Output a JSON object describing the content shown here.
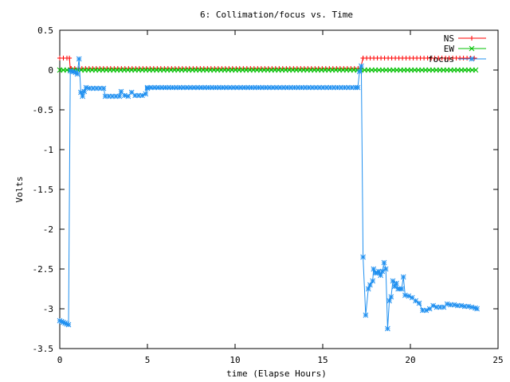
{
  "chart_data": {
    "type": "line",
    "title": "6: Collimation/focus vs. Time",
    "xlabel": "time (Elapse Hours)",
    "ylabel": "Volts",
    "xlim": [
      0,
      25
    ],
    "ylim": [
      -3.5,
      0.5
    ],
    "xticks": [
      0,
      5,
      10,
      15,
      20,
      25
    ],
    "xtick_labels": [
      "0",
      "5",
      "10",
      "15",
      "20",
      "25"
    ],
    "yticks": [
      0.5,
      0,
      -0.5,
      -1,
      -1.5,
      -2,
      -2.5,
      -3,
      -3.5
    ],
    "ytick_labels": [
      "0.5",
      "0",
      "-0.5",
      "-1",
      "-1.5",
      "-2",
      "-2.5",
      "-3",
      "-3.5"
    ],
    "grid": false,
    "legend_position": "top-right",
    "series": [
      {
        "name": "NS",
        "color": "#ff0000",
        "marker": "plus",
        "segments": [
          {
            "x_start": 0.0,
            "x_end": 0.55,
            "y": 0.15
          },
          {
            "x_start": 0.65,
            "x_end": 17.15,
            "y": 0.02
          },
          {
            "x_start": 17.3,
            "x_end": 23.8,
            "y": 0.15
          }
        ],
        "points": [
          {
            "x": 0.55,
            "y": 0.15
          },
          {
            "x": 0.6,
            "y": 0.02
          },
          {
            "x": 17.15,
            "y": 0.02
          },
          {
            "x": 17.3,
            "y": 0.15
          }
        ]
      },
      {
        "name": "EW",
        "color": "#00c000",
        "marker": "cross",
        "segments": [
          {
            "x_start": 0.0,
            "x_end": 23.8,
            "y": 0.0
          }
        ],
        "points": []
      },
      {
        "name": "focus",
        "color": "#2090f0",
        "marker": "star",
        "segments": [
          {
            "x_start": 5.0,
            "x_end": 17.0,
            "y": -0.22
          }
        ],
        "points": [
          {
            "x": 0.0,
            "y": -3.15
          },
          {
            "x": 0.1,
            "y": -3.16
          },
          {
            "x": 0.2,
            "y": -3.17
          },
          {
            "x": 0.3,
            "y": -3.18
          },
          {
            "x": 0.4,
            "y": -3.19
          },
          {
            "x": 0.5,
            "y": -3.2
          },
          {
            "x": 0.6,
            "y": -0.01
          },
          {
            "x": 0.7,
            "y": -0.02
          },
          {
            "x": 0.8,
            "y": -0.02
          },
          {
            "x": 0.9,
            "y": -0.03
          },
          {
            "x": 1.0,
            "y": -0.05
          },
          {
            "x": 1.1,
            "y": 0.14
          },
          {
            "x": 1.2,
            "y": -0.28
          },
          {
            "x": 1.3,
            "y": -0.33
          },
          {
            "x": 1.4,
            "y": -0.27
          },
          {
            "x": 1.5,
            "y": -0.22
          },
          {
            "x": 1.7,
            "y": -0.23
          },
          {
            "x": 1.9,
            "y": -0.23
          },
          {
            "x": 2.1,
            "y": -0.23
          },
          {
            "x": 2.3,
            "y": -0.23
          },
          {
            "x": 2.5,
            "y": -0.23
          },
          {
            "x": 2.6,
            "y": -0.33
          },
          {
            "x": 2.8,
            "y": -0.33
          },
          {
            "x": 3.0,
            "y": -0.33
          },
          {
            "x": 3.2,
            "y": -0.33
          },
          {
            "x": 3.4,
            "y": -0.33
          },
          {
            "x": 3.5,
            "y": -0.27
          },
          {
            "x": 3.7,
            "y": -0.32
          },
          {
            "x": 3.9,
            "y": -0.33
          },
          {
            "x": 4.1,
            "y": -0.28
          },
          {
            "x": 4.3,
            "y": -0.32
          },
          {
            "x": 4.5,
            "y": -0.32
          },
          {
            "x": 4.7,
            "y": -0.32
          },
          {
            "x": 4.9,
            "y": -0.3
          },
          {
            "x": 5.0,
            "y": -0.23
          },
          {
            "x": 17.0,
            "y": -0.22
          },
          {
            "x": 17.1,
            "y": -0.02
          },
          {
            "x": 17.2,
            "y": 0.05
          },
          {
            "x": 17.3,
            "y": -2.35
          },
          {
            "x": 17.45,
            "y": -3.08
          },
          {
            "x": 17.6,
            "y": -2.75
          },
          {
            "x": 17.7,
            "y": -2.7
          },
          {
            "x": 17.85,
            "y": -2.65
          },
          {
            "x": 17.9,
            "y": -2.5
          },
          {
            "x": 18.0,
            "y": -2.55
          },
          {
            "x": 18.1,
            "y": -2.55
          },
          {
            "x": 18.2,
            "y": -2.53
          },
          {
            "x": 18.3,
            "y": -2.58
          },
          {
            "x": 18.4,
            "y": -2.53
          },
          {
            "x": 18.5,
            "y": -2.42
          },
          {
            "x": 18.6,
            "y": -2.5
          },
          {
            "x": 18.7,
            "y": -3.25
          },
          {
            "x": 18.8,
            "y": -2.9
          },
          {
            "x": 18.9,
            "y": -2.85
          },
          {
            "x": 19.0,
            "y": -2.65
          },
          {
            "x": 19.1,
            "y": -2.72
          },
          {
            "x": 19.2,
            "y": -2.68
          },
          {
            "x": 19.3,
            "y": -2.75
          },
          {
            "x": 19.4,
            "y": -2.75
          },
          {
            "x": 19.5,
            "y": -2.75
          },
          {
            "x": 19.6,
            "y": -2.6
          },
          {
            "x": 19.7,
            "y": -2.83
          },
          {
            "x": 19.9,
            "y": -2.84
          },
          {
            "x": 20.1,
            "y": -2.86
          },
          {
            "x": 20.3,
            "y": -2.9
          },
          {
            "x": 20.5,
            "y": -2.93
          },
          {
            "x": 20.7,
            "y": -3.02
          },
          {
            "x": 20.9,
            "y": -3.02
          },
          {
            "x": 21.1,
            "y": -3.0
          },
          {
            "x": 21.3,
            "y": -2.96
          },
          {
            "x": 21.5,
            "y": -2.98
          },
          {
            "x": 21.7,
            "y": -2.98
          },
          {
            "x": 21.9,
            "y": -2.98
          },
          {
            "x": 22.1,
            "y": -2.94
          },
          {
            "x": 22.3,
            "y": -2.95
          },
          {
            "x": 22.5,
            "y": -2.95
          },
          {
            "x": 22.7,
            "y": -2.96
          },
          {
            "x": 22.9,
            "y": -2.96
          },
          {
            "x": 23.1,
            "y": -2.97
          },
          {
            "x": 23.3,
            "y": -2.97
          },
          {
            "x": 23.5,
            "y": -2.98
          },
          {
            "x": 23.7,
            "y": -2.99
          },
          {
            "x": 23.8,
            "y": -3.0
          }
        ]
      }
    ]
  }
}
